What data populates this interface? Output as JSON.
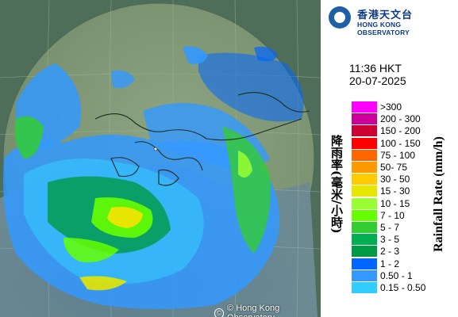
{
  "organization": {
    "name_cn": "香港天文台",
    "name_en": "HONG KONG OBSERVATORY",
    "logo_icon": "hko-logo-icon"
  },
  "timestamp": {
    "time": "11:36 HKT",
    "date": "20-07-2025"
  },
  "legend": {
    "unit_en": "Rainfall Rate (mm/h)",
    "unit_cn": "降雨率(毫米/小時)",
    "items": [
      {
        "label": ">300",
        "color": "#ff00ff"
      },
      {
        "label": "200 - 300",
        "color": "#cc0099"
      },
      {
        "label": "150 - 200",
        "color": "#cc0033"
      },
      {
        "label": "100 - 150",
        "color": "#ff0000"
      },
      {
        "label": "75 - 100",
        "color": "#ff6600"
      },
      {
        "label": "50- 75",
        "color": "#ff9900"
      },
      {
        "label": "30 - 50",
        "color": "#ffcc00"
      },
      {
        "label": "15 - 30",
        "color": "#e6e600"
      },
      {
        "label": "10 - 15",
        "color": "#99ff33"
      },
      {
        "label": "7 - 10",
        "color": "#66ff00"
      },
      {
        "label": "5 - 7",
        "color": "#33cc33"
      },
      {
        "label": "3 - 5",
        "color": "#00b050"
      },
      {
        "label": "2 - 3",
        "color": "#009944"
      },
      {
        "label": "1 - 2",
        "color": "#0066ff"
      },
      {
        "label": "0.50 - 1",
        "color": "#3399ff"
      },
      {
        "label": "0.15 - 0.50",
        "color": "#33ccff"
      }
    ]
  },
  "map": {
    "copyright": "© Hong Kong Observatory",
    "copyright_icon": "copyright-icon"
  }
}
